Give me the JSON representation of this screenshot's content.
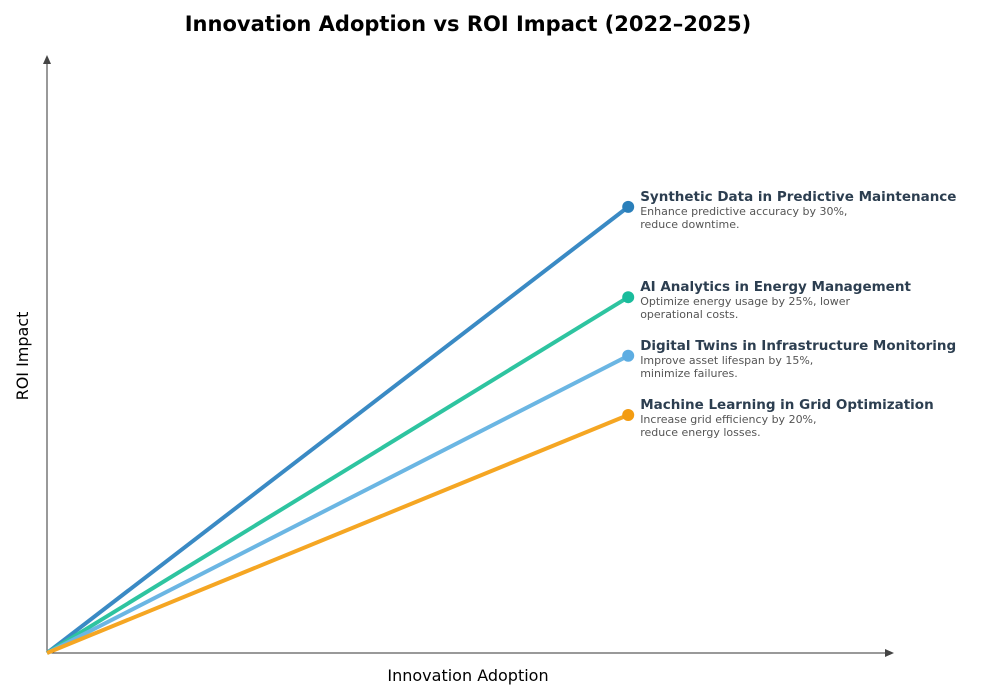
{
  "chart_data": {
    "type": "line",
    "title": "Innovation Adoption vs ROI Impact (2022–2025)",
    "xlabel": "Innovation Adoption",
    "ylabel": "ROI Impact",
    "xlim": [
      0,
      1
    ],
    "ylim": [
      0,
      1
    ],
    "grid": false,
    "ticks": false,
    "series": [
      {
        "name": "Synthetic Data in Predictive Maintenance",
        "description": [
          "Enhance predictive accuracy by 30%,",
          "reduce downtime."
        ],
        "x": [
          0,
          0.687
        ],
        "y": [
          0,
          0.746
        ],
        "line_color": "#3a8ac4",
        "dot_color": "#2a7fba"
      },
      {
        "name": "AI Analytics in Energy Management",
        "description": [
          "Optimize energy usage by 25%, lower",
          "operational costs."
        ],
        "x": [
          0,
          0.687
        ],
        "y": [
          0,
          0.595
        ],
        "line_color": "#2ec4a0",
        "dot_color": "#1abc9c"
      },
      {
        "name": "Digital Twins in Infrastructure Monitoring",
        "description": [
          "Improve asset lifespan by 15%,",
          "minimize failures."
        ],
        "x": [
          0,
          0.687
        ],
        "y": [
          0,
          0.497
        ],
        "line_color": "#6bb6e3",
        "dot_color": "#5dade2"
      },
      {
        "name": "Machine Learning in Grid Optimization",
        "description": [
          "Increase grid efficiency by 20%,",
          "reduce energy losses."
        ],
        "x": [
          0,
          0.687
        ],
        "y": [
          0,
          0.398
        ],
        "line_color": "#f5a623",
        "dot_color": "#f39c12"
      }
    ]
  }
}
